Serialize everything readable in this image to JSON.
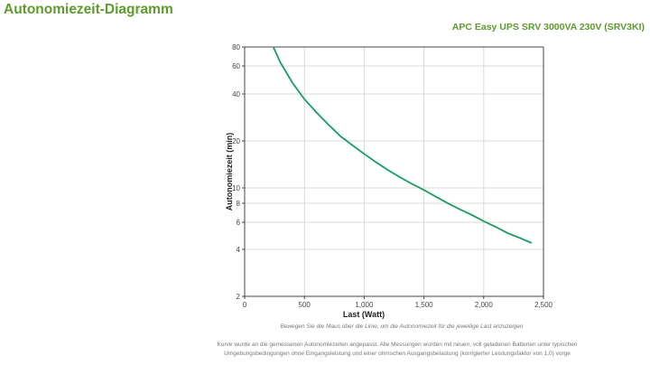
{
  "page": {
    "title": "Autonomiezeit-Diagramm",
    "product": "APC Easy UPS SRV 3000VA 230V (SRV3KI)",
    "hint": "Bewegen Sie die Maus über die Linie, um die Autonomiezeit für die jeweilige Last anzuzeigen",
    "footnote": "Kurve wurde an die gemessenen Autonomiezeiten angepasst. Alle Messungen wurden mit neuen, voll geladenen Batterien unter typischen Umgebungsbedingungen ohne Eingangsleistung und einer ohmschen Ausgangsbelastung (korrigierter Leistungsfaktor von 1,0) vorge"
  },
  "colors": {
    "title": "#5b9c2c",
    "line": "#1f8f5f",
    "grid": "#d9d9d9",
    "axis": "#444444"
  },
  "chart_data": {
    "type": "line",
    "title": "",
    "xlabel": "Last (Watt)",
    "ylabel": "Autonomiezeit (min)",
    "xlim": [
      0,
      2500
    ],
    "ylim": [
      2,
      80
    ],
    "yscale": "log (custom)",
    "grid": true,
    "legend": null,
    "x_ticks": [
      0,
      500,
      1000,
      1500,
      2000,
      2500
    ],
    "x_tick_labels": [
      "0",
      "500",
      "1,000",
      "1,500",
      "2,000",
      "2,500"
    ],
    "y_ticks": [
      2,
      4,
      6,
      8,
      10,
      20,
      40,
      60,
      80
    ],
    "y_tick_labels": [
      "2",
      "4",
      "6",
      "8",
      "10",
      "20",
      "40",
      "60",
      "80"
    ],
    "series": [
      {
        "name": "Autonomiezeit",
        "x": [
          240,
          300,
          400,
          500,
          600,
          700,
          800,
          900,
          1000,
          1100,
          1200,
          1300,
          1400,
          1500,
          1600,
          1700,
          1800,
          1900,
          2000,
          2100,
          2200,
          2300,
          2400
        ],
        "y": [
          80,
          63,
          47,
          37,
          30.5,
          25.5,
          21.5,
          18.8,
          16.5,
          14.6,
          13,
          11.7,
          10.6,
          9.7,
          8.8,
          8.0,
          7.3,
          6.7,
          6.1,
          5.6,
          5.1,
          4.75,
          4.4
        ]
      }
    ]
  }
}
